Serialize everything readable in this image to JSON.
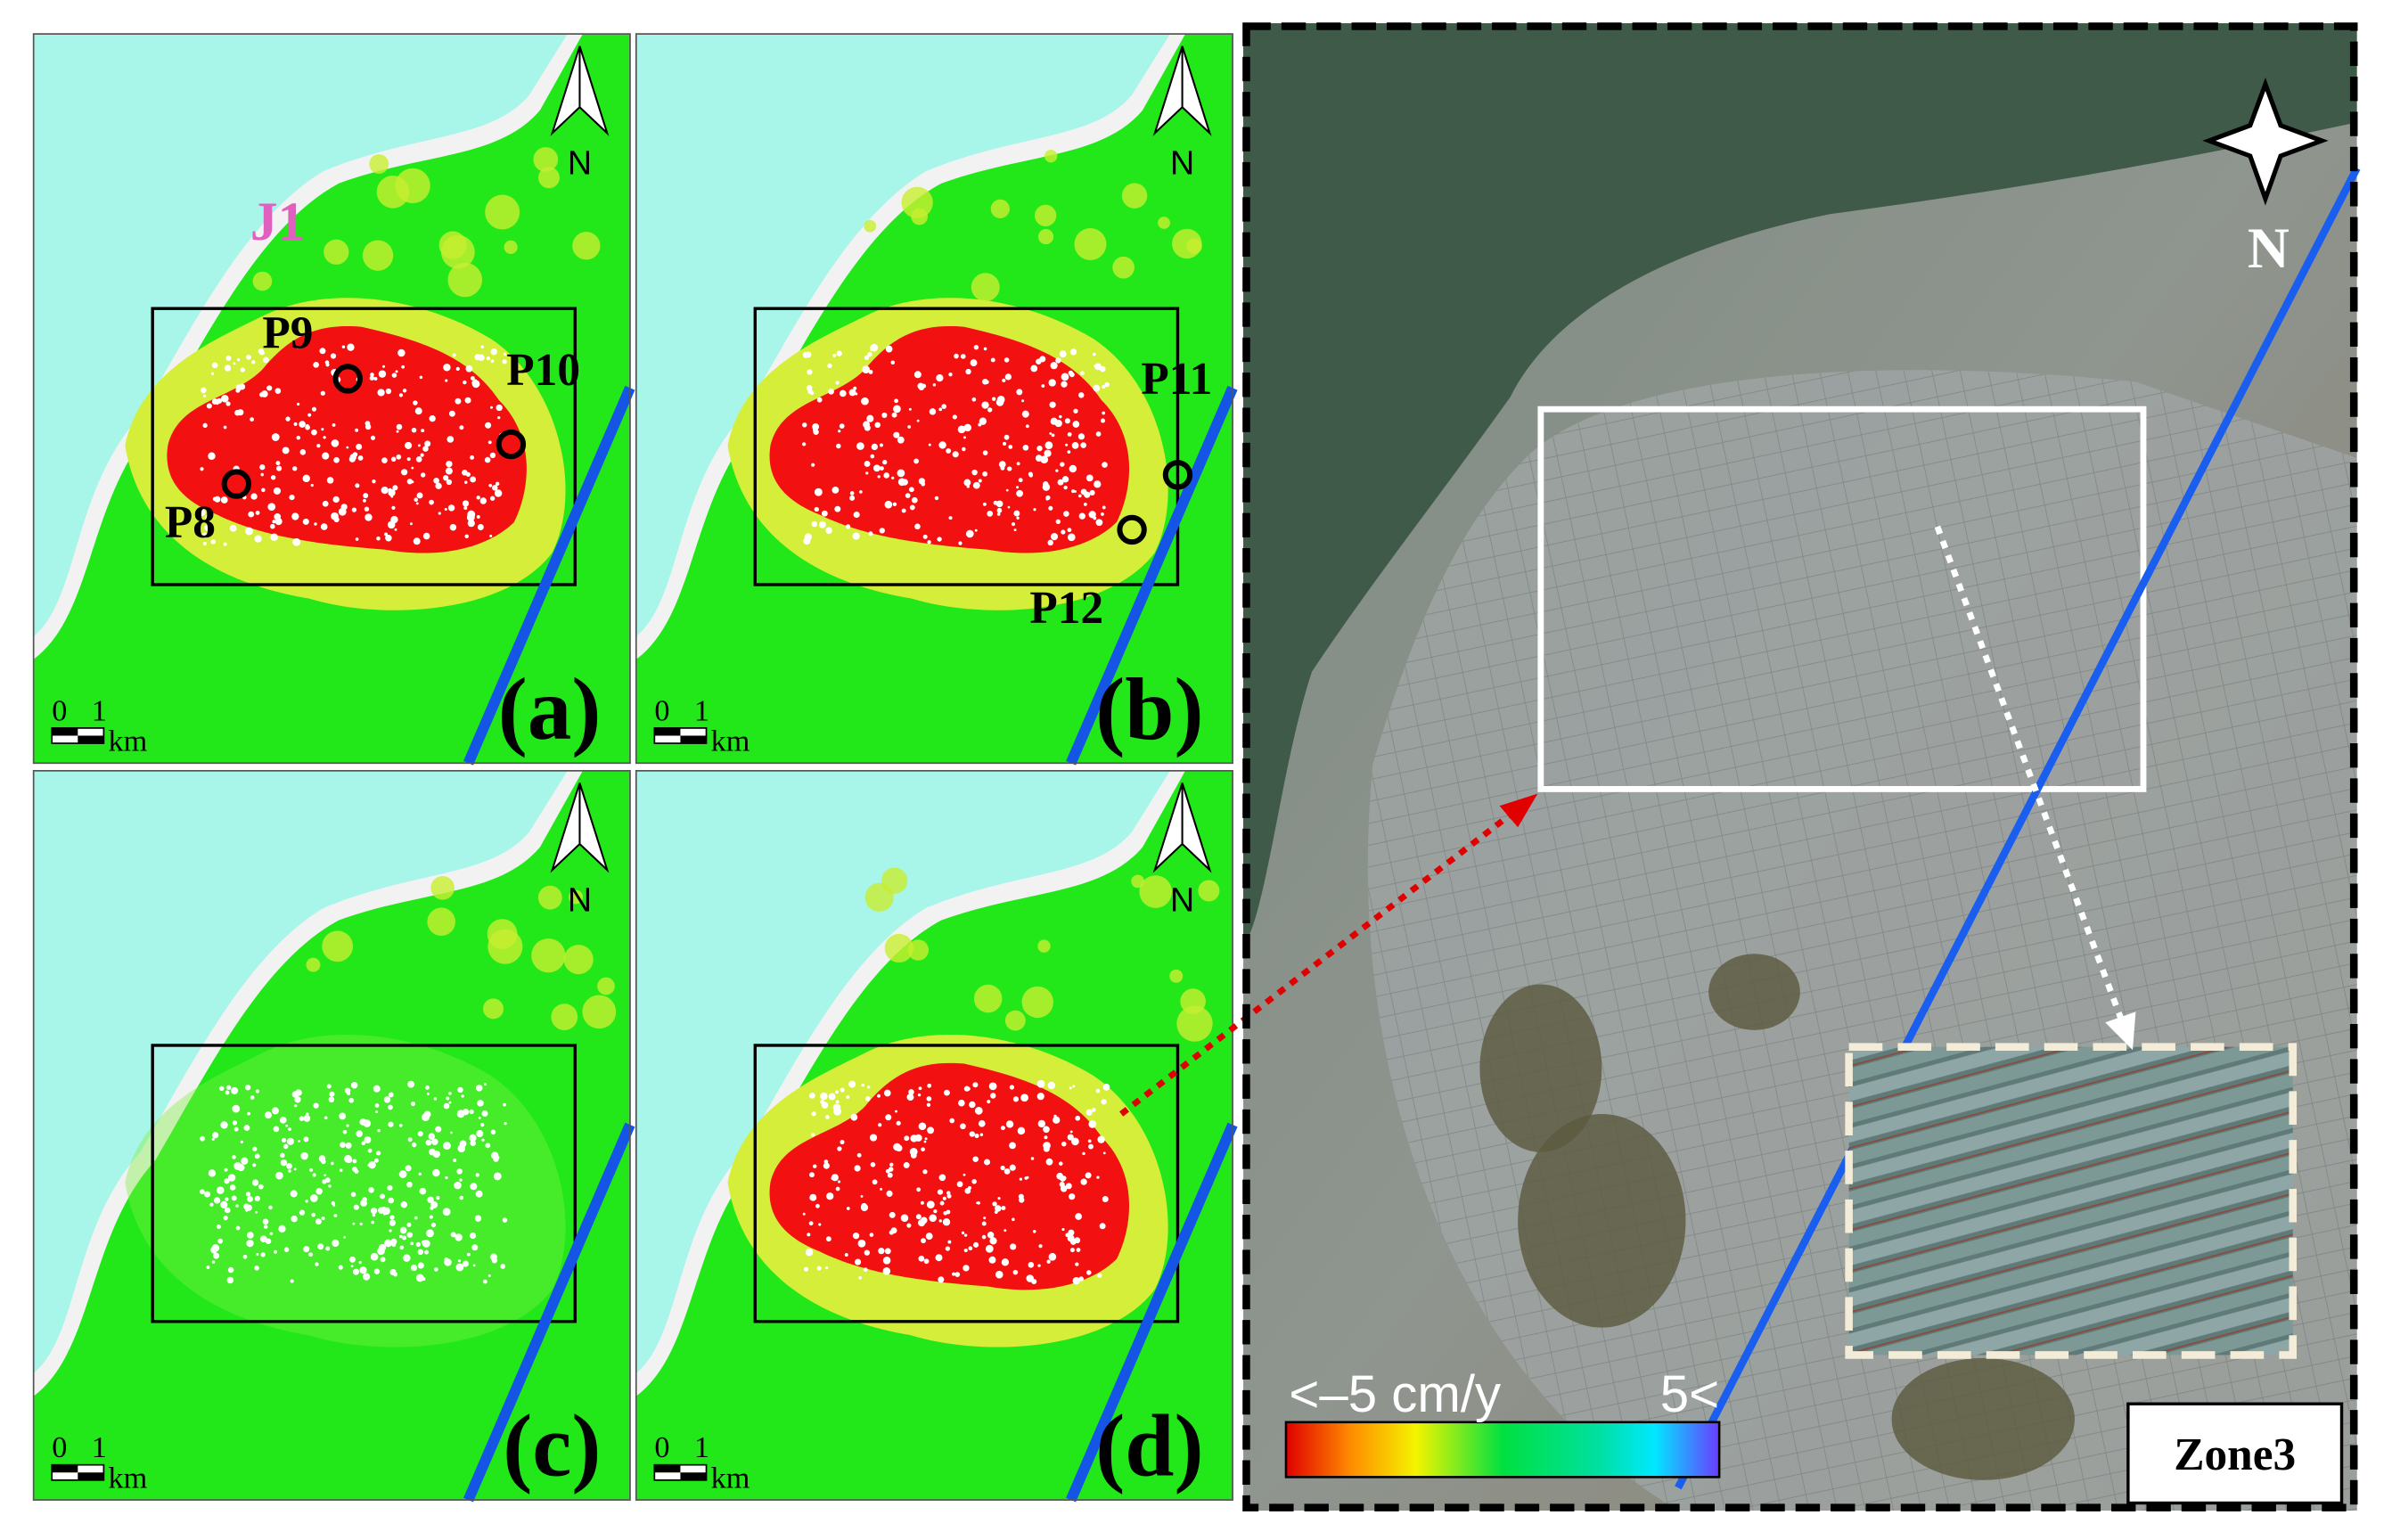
{
  "panels": [
    {
      "label": "(a)",
      "region": "J1",
      "points": [
        "P9",
        "P10",
        "P8"
      ]
    },
    {
      "label": "(b)",
      "points": [
        "P11",
        "P12"
      ]
    },
    {
      "label": "(c)",
      "points": []
    },
    {
      "label": "(d)",
      "points": []
    }
  ],
  "map_north": "N",
  "scale": {
    "zero": "0",
    "one": "1",
    "unit": "km"
  },
  "satellite": {
    "north": "N",
    "colorbar": {
      "min_label": "<–5 cm/y",
      "max_label": "5<"
    },
    "zone": "Zone3"
  }
}
